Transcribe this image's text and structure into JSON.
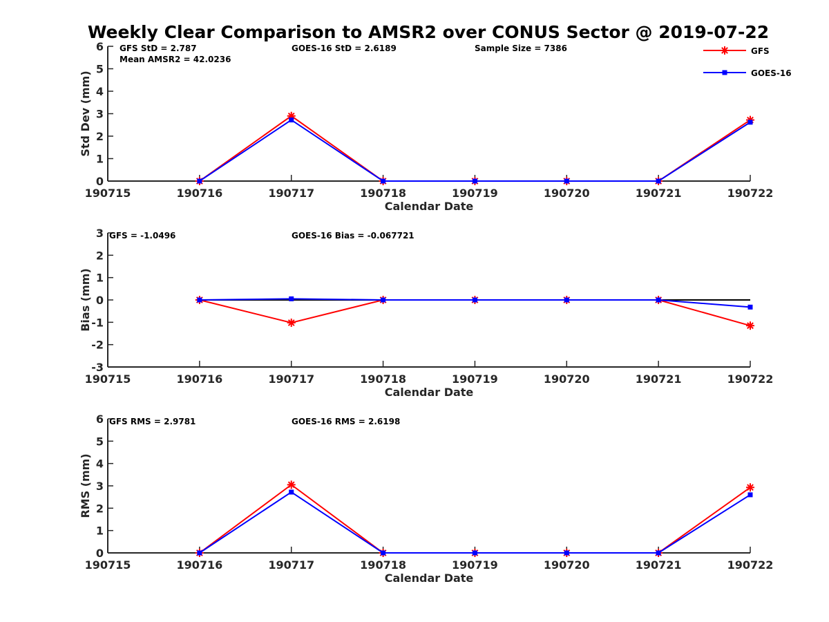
{
  "title": "Weekly Clear Comparison to AMSR2 over CONUS Sector @ 2019-07-22",
  "legend": {
    "placement": "top-right",
    "entries": [
      {
        "name": "GFS",
        "color": "#ff0000",
        "marker": "asterisk"
      },
      {
        "name": "GOES-16",
        "color": "#0000ff",
        "marker": "square"
      }
    ]
  },
  "chart_data": [
    {
      "type": "line",
      "xlabel": "Calendar Date",
      "ylabel": "Std Dev (mm)",
      "x_ticks": [
        "190715",
        "190716",
        "190717",
        "190718",
        "190719",
        "190720",
        "190721",
        "190722"
      ],
      "y_ticks": [
        "0",
        "1",
        "2",
        "3",
        "4",
        "5",
        "6"
      ],
      "ylim": [
        0,
        6
      ],
      "grid": false,
      "reference_line": null,
      "annotations": [
        "GFS StD = 2.787",
        "Mean AMSR2 = 42.0236",
        "GOES-16 StD = 2.6189",
        "Sample Size = 7386"
      ],
      "x": [
        "190716",
        "190717",
        "190718",
        "190719",
        "190720",
        "190721",
        "190722"
      ],
      "series": [
        {
          "name": "GFS",
          "color": "#ff0000",
          "marker": "asterisk",
          "values": [
            0,
            2.9,
            0,
            0,
            0,
            0,
            2.72
          ]
        },
        {
          "name": "GOES-16",
          "color": "#0000ff",
          "marker": "square",
          "values": [
            0,
            2.72,
            0,
            0,
            0,
            0,
            2.62
          ]
        }
      ]
    },
    {
      "type": "line",
      "xlabel": "Calendar Date",
      "ylabel": "Bias (mm)",
      "x_ticks": [
        "190715",
        "190716",
        "190717",
        "190718",
        "190719",
        "190720",
        "190721",
        "190722"
      ],
      "y_ticks": [
        "-3",
        "-2",
        "-1",
        "0",
        "1",
        "2",
        "3"
      ],
      "ylim": [
        -3,
        3
      ],
      "grid": false,
      "reference_line": 0,
      "annotations": [
        "GFS = -1.0496",
        "GOES-16 Bias  = -0.067721"
      ],
      "x": [
        "190716",
        "190717",
        "190718",
        "190719",
        "190720",
        "190721",
        "190722"
      ],
      "series": [
        {
          "name": "GFS",
          "color": "#ff0000",
          "marker": "asterisk",
          "values": [
            0,
            -1.02,
            0,
            0,
            0,
            0,
            -1.15
          ]
        },
        {
          "name": "GOES-16",
          "color": "#0000ff",
          "marker": "square",
          "values": [
            0,
            0.05,
            0,
            0,
            0,
            0,
            -0.32
          ]
        }
      ]
    },
    {
      "type": "line",
      "xlabel": "Calendar Date",
      "ylabel": "RMS (mm)",
      "x_ticks": [
        "190715",
        "190716",
        "190717",
        "190718",
        "190719",
        "190720",
        "190721",
        "190722"
      ],
      "y_ticks": [
        "0",
        "1",
        "2",
        "3",
        "4",
        "5",
        "6"
      ],
      "ylim": [
        0,
        6
      ],
      "grid": false,
      "reference_line": null,
      "annotations": [
        "GFS RMS = 2.9781",
        "GOES-16 RMS = 2.6198"
      ],
      "x": [
        "190716",
        "190717",
        "190718",
        "190719",
        "190720",
        "190721",
        "190722"
      ],
      "series": [
        {
          "name": "GFS",
          "color": "#ff0000",
          "marker": "asterisk",
          "values": [
            0,
            3.05,
            0,
            0,
            0,
            0,
            2.93
          ]
        },
        {
          "name": "GOES-16",
          "color": "#0000ff",
          "marker": "square",
          "values": [
            0,
            2.72,
            0,
            0,
            0,
            0,
            2.6
          ]
        }
      ]
    }
  ]
}
